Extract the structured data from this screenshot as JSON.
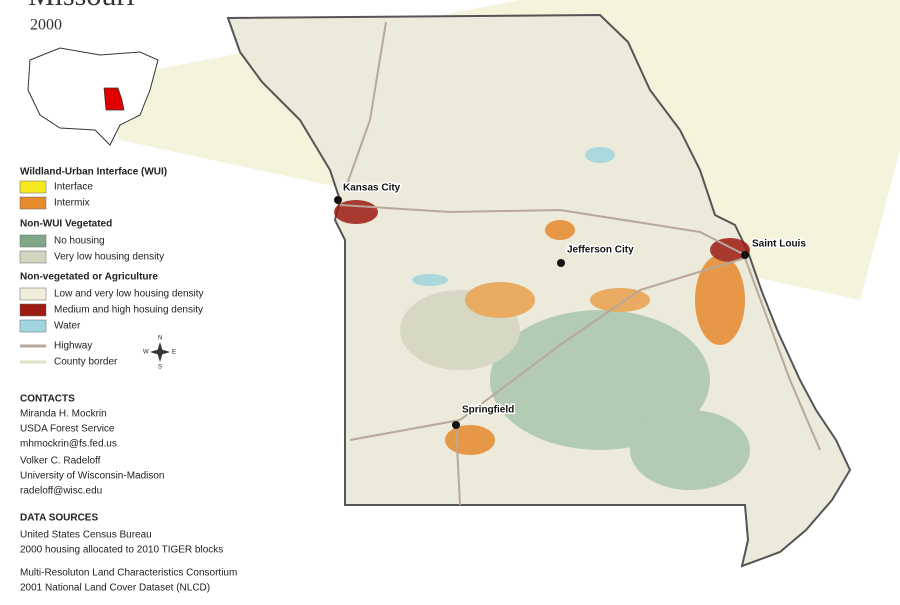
{
  "header": {
    "title": "Missouri",
    "subtitle": "2000"
  },
  "legend": {
    "sections": [
      {
        "heading": "Wildland-Urban Interface (WUI)",
        "items": [
          "Interface",
          "Intermix"
        ]
      },
      {
        "heading": "Non-WUI Vegetated",
        "items": [
          "No housing",
          "Very low housing density"
        ]
      },
      {
        "heading": "Non-vegetated or Agriculture",
        "items": [
          "Low and very low housing density",
          "Medium and high hosuing density",
          "Water"
        ]
      }
    ],
    "lines": [
      "Highway",
      "County border"
    ]
  },
  "compass": [
    "N",
    "S",
    "E",
    "W"
  ],
  "cities": [
    "Kansas City",
    "Jefferson City",
    "Saint Louis",
    "Springfield"
  ],
  "contacts": {
    "heading": "CONTACTS",
    "people": [
      [
        "Miranda H. Mockrin",
        "USDA Forest Service",
        "mhmockrin@fs.fed.us"
      ],
      [
        "Volker C. Radeloff",
        "University of Wisconsin-Madison",
        "radeloff@wisc.edu"
      ]
    ]
  },
  "data_sources": {
    "heading": "DATA SOURCES",
    "groups": [
      [
        "United States Census Bureau",
        "2000 housing allocated to 2010 TIGER blocks"
      ],
      [
        "Multi-Resoluton Land Characteristics Consortium",
        "2001 National Land Cover Dataset (NLCD)"
      ]
    ]
  }
}
